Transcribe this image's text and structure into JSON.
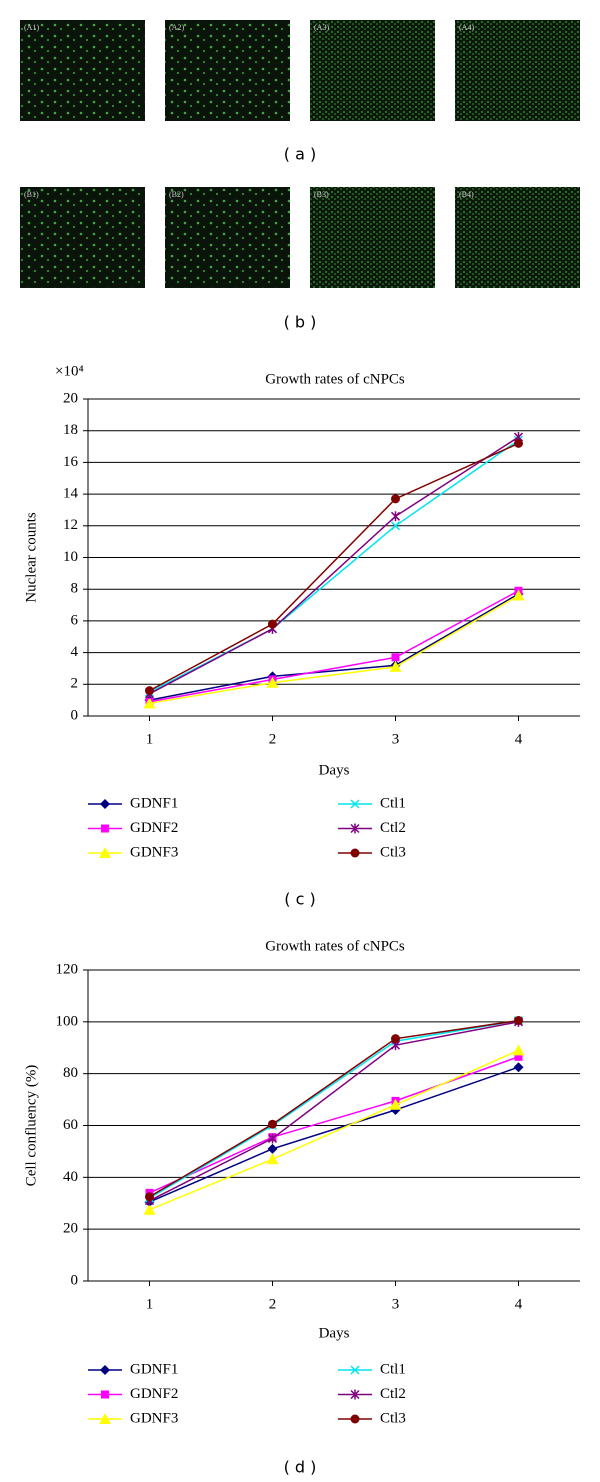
{
  "image_panels": [
    {
      "labels": [
        "(A1)",
        "(A2)",
        "(A3)",
        "(A4)"
      ],
      "caption": "( a )"
    },
    {
      "labels": [
        "(B1)",
        "(B2)",
        "(B3)",
        "(B4)"
      ],
      "caption": "( b )"
    }
  ],
  "chart_data": [
    {
      "type": "line",
      "title": "Growth rates of cNPCs",
      "y_multiplier": "×10⁴",
      "x_label": "Days",
      "y_label": "Nuclear counts",
      "caption": "( c )",
      "x": [
        1,
        2,
        3,
        4
      ],
      "xlim": [
        0.5,
        4.5
      ],
      "xticks": [
        1,
        2,
        3,
        4
      ],
      "ylim": [
        0,
        20
      ],
      "yticks": [
        0,
        2,
        4,
        6,
        8,
        10,
        12,
        14,
        16,
        18,
        20
      ],
      "grid": true,
      "series": [
        {
          "name": "GDNF1",
          "color": "#000080",
          "marker": "diamond",
          "values": [
            1.0,
            2.5,
            3.2,
            7.7
          ]
        },
        {
          "name": "GDNF2",
          "color": "#ff00ff",
          "marker": "square",
          "values": [
            0.9,
            2.3,
            3.7,
            7.9
          ]
        },
        {
          "name": "GDNF3",
          "color": "#ffff00",
          "marker": "triangle",
          "values": [
            0.8,
            2.1,
            3.1,
            7.6
          ]
        },
        {
          "name": "Ctl1",
          "color": "#00e5ee",
          "marker": "x",
          "values": [
            1.5,
            5.5,
            12.0,
            17.4
          ]
        },
        {
          "name": "Ctl2",
          "color": "#800080",
          "marker": "star",
          "values": [
            1.4,
            5.5,
            12.6,
            17.6
          ]
        },
        {
          "name": "Ctl3",
          "color": "#800000",
          "marker": "circle",
          "values": [
            1.6,
            5.8,
            13.7,
            17.2
          ]
        }
      ]
    },
    {
      "type": "line",
      "title": "Growth rates of cNPCs",
      "x_label": "Days",
      "y_label": "Cell confluency (%)",
      "caption": "( d )",
      "x": [
        1,
        2,
        3,
        4
      ],
      "xlim": [
        0.5,
        4.5
      ],
      "xticks": [
        1,
        2,
        3,
        4
      ],
      "ylim": [
        0,
        120
      ],
      "yticks": [
        0,
        20,
        40,
        60,
        80,
        100,
        120
      ],
      "grid": true,
      "series": [
        {
          "name": "GDNF1",
          "color": "#000080",
          "marker": "diamond",
          "values": [
            30.5,
            51,
            66,
            82.5
          ]
        },
        {
          "name": "GDNF2",
          "color": "#ff00ff",
          "marker": "square",
          "values": [
            34,
            55.5,
            69.5,
            86.5
          ]
        },
        {
          "name": "GDNF3",
          "color": "#ffff00",
          "marker": "triangle",
          "values": [
            27.5,
            47,
            68,
            89
          ]
        },
        {
          "name": "Ctl1",
          "color": "#00e5ee",
          "marker": "x",
          "values": [
            32,
            60,
            92.5,
            100.5
          ]
        },
        {
          "name": "Ctl2",
          "color": "#800080",
          "marker": "star",
          "values": [
            31,
            55,
            91,
            100
          ]
        },
        {
          "name": "Ctl3",
          "color": "#800000",
          "marker": "circle",
          "values": [
            32.5,
            60.5,
            93.5,
            100.5
          ]
        }
      ]
    }
  ]
}
